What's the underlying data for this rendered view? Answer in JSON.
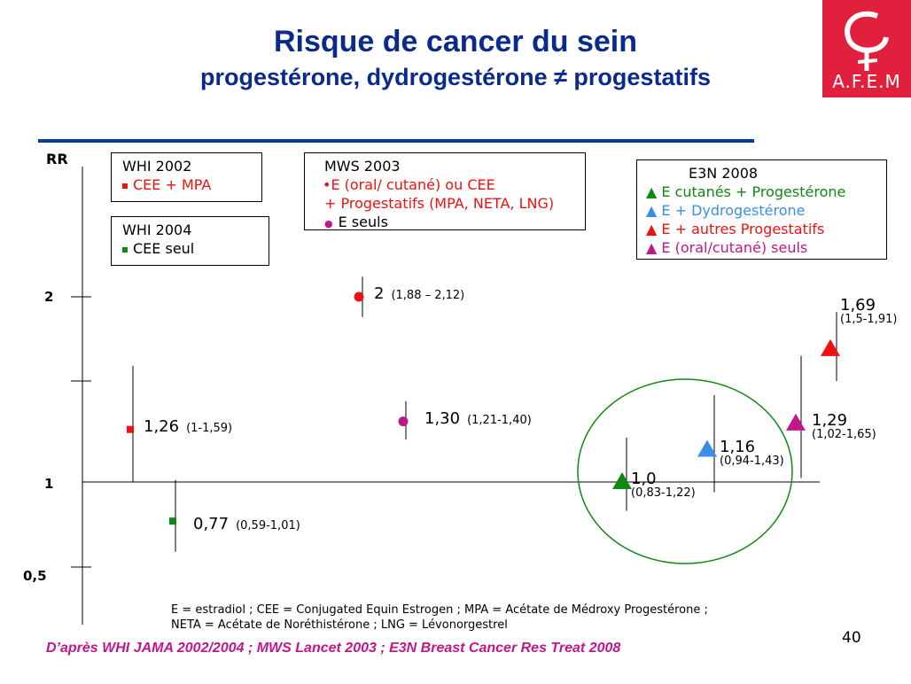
{
  "header": {
    "title": "Risque de cancer du sein",
    "subtitle": "progestérone, dydrogestérone ≠ progestatifs",
    "logo_text": "A.F.E.M"
  },
  "colors": {
    "red": "#ee1111",
    "green": "#118811",
    "magenta": "#c0178a",
    "blue": "#3a8ee8"
  },
  "chart_data": {
    "type": "scatter",
    "ylabel": "RR",
    "yticks": [
      "2",
      "1",
      "0,5"
    ],
    "ytick_values": [
      2,
      1,
      0.5
    ],
    "reference_line": 1,
    "legends": [
      {
        "title": "WHI 2002",
        "items": [
          {
            "marker": "square",
            "color": "red",
            "label": "CEE + MPA"
          }
        ]
      },
      {
        "title": "WHI 2004",
        "items": [
          {
            "marker": "square",
            "color": "green",
            "label": "CEE seul"
          }
        ]
      },
      {
        "title": "MWS 2003",
        "items": [
          {
            "marker": "dot",
            "color": "red",
            "label": "•E (oral/ cutané) ou  CEE"
          },
          {
            "marker": "none",
            "color": "red",
            "label": "+ Progestatifs (MPA, NETA, LNG)"
          },
          {
            "marker": "dot",
            "color": "magenta",
            "label": "E seuls"
          }
        ]
      },
      {
        "title": "E3N 2008",
        "items": [
          {
            "marker": "triangle",
            "color": "green",
            "label": "E cutanés + Progestérone"
          },
          {
            "marker": "triangle",
            "color": "blue",
            "label": "E + Dydrogestérone"
          },
          {
            "marker": "triangle",
            "color": "red",
            "label": "E + autres Progestatifs"
          },
          {
            "marker": "triangle",
            "color": "magenta",
            "label": "E (oral/cutané) seuls"
          }
        ]
      }
    ],
    "points": [
      {
        "study": "WHI 2002",
        "marker": "square",
        "color": "red",
        "rr": 1.26,
        "ci": [
          1,
          1.59
        ],
        "label": "1,26",
        "ci_label": "(1-1,59)"
      },
      {
        "study": "WHI 2004",
        "marker": "square",
        "color": "green",
        "rr": 0.77,
        "ci": [
          0.59,
          1.01
        ],
        "label": "0,77",
        "ci_label": "(0,59-1,01)"
      },
      {
        "study": "MWS 2003",
        "marker": "dot",
        "color": "red",
        "rr": 2,
        "ci": [
          1.88,
          2.12
        ],
        "label": "2",
        "ci_label": "(1,88 – 2,12)"
      },
      {
        "study": "MWS 2003",
        "marker": "dot",
        "color": "magenta",
        "rr": 1.3,
        "ci": [
          1.21,
          1.4
        ],
        "label": "1,30",
        "ci_label": "(1,21-1,40)"
      },
      {
        "study": "E3N 2008",
        "marker": "triangle",
        "color": "green",
        "rr": 1.0,
        "ci": [
          0.83,
          1.22
        ],
        "label": "1,0",
        "ci_label": "(0,83-1,22)"
      },
      {
        "study": "E3N 2008",
        "marker": "triangle",
        "color": "blue",
        "rr": 1.16,
        "ci": [
          0.94,
          1.43
        ],
        "label": "1,16",
        "ci_label": "(0,94-1,43)"
      },
      {
        "study": "E3N 2008",
        "marker": "triangle",
        "color": "magenta",
        "rr": 1.29,
        "ci": [
          1.02,
          1.65
        ],
        "label": "1,29",
        "ci_label": "(1,02-1,65)"
      },
      {
        "study": "E3N 2008",
        "marker": "triangle",
        "color": "red",
        "rr": 1.69,
        "ci": [
          1.5,
          1.91
        ],
        "label": "1,69",
        "ci_label": "(1,5-1,91)"
      }
    ]
  },
  "footnote": [
    "E = estradiol ; CEE = Conjugated Equin Estrogen ; MPA = Acétate de Médroxy Progestérone ;",
    "NETA = Acétate de Noréthistérone ; LNG = Lévonorgestrel"
  ],
  "source": "D’après WHI JAMA 2002/2004 ; MWS Lancet 2003 ; E3N Breast Cancer Res Treat 2008",
  "page_number": "40"
}
